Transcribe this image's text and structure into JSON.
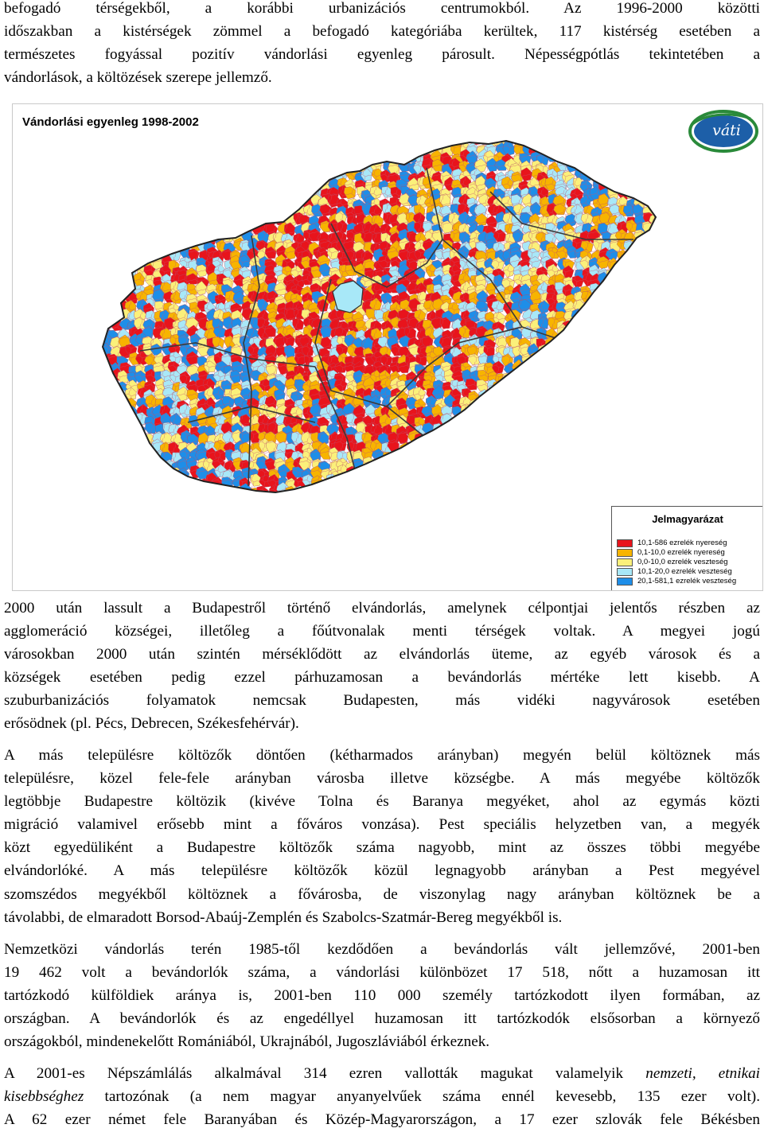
{
  "paragraph_top": {
    "lines": [
      "befogadó térségekből, a korábbi urbanizációs centrumokból. Az 1996-2000 közötti",
      "időszakban a kistérségek zömmel a befogadó kategóriába kerültek, 117 kistérség esetében a",
      "természetes fogyással pozitív vándorlási egyenleg párosult. Népességpótlás tekintetében a",
      "vándorlások, a költözések szerepe jellemző."
    ]
  },
  "figure": {
    "title": "Vándorlási egyenleg 1998-2002",
    "logo_text": "váti",
    "legend": {
      "title": "Jelmagyarázat",
      "items": [
        {
          "label": "10,1-586 ezrelék nyereség",
          "color": "#e8141c"
        },
        {
          "label": "0,1-10,0 ezrelék nyereség",
          "color": "#f7b400"
        },
        {
          "label": "0,0-10,0 ezrelék veszteség",
          "color": "#fbf07a"
        },
        {
          "label": "10,1-20,0 ezrelék veszteség",
          "color": "#a8e8f8"
        },
        {
          "label": "20,1-581,1 ezrelék veszteség",
          "color": "#1e8ee8"
        }
      ]
    }
  },
  "paragraph_2": {
    "lines": [
      "2000 után lassult a Budapestről történő elvándorlás, amelynek célpontjai jelentős részben az",
      "agglomeráció községei, illetőleg a főútvonalak menti térségek voltak. A megyei jogú",
      "városokban 2000 után szintén mérséklődött az elvándorlás üteme, az egyéb városok és a",
      "községek esetében pedig ezzel párhuzamosan a bevándorlás mértéke lett kisebb. A",
      "szuburbanizációs folyamatok nemcsak Budapesten, más vidéki nagyvárosok esetében",
      "erősödnek (pl. Pécs, Debrecen, Székesfehérvár)."
    ]
  },
  "paragraph_3": {
    "lines": [
      "A más településre költözők döntően (kétharmados arányban) megyén belül költöznek más",
      "településre, közel fele-fele arányban városba illetve községbe. A más megyébe költözők",
      "legtöbbje Budapestre költözik (kivéve Tolna és Baranya megyéket, ahol az egymás közti",
      "migráció valamivel erősebb mint a főváros vonzása). Pest speciális helyzetben van, a megyék",
      "közt egyedüliként a Budapestre költözők száma nagyobb, mint az összes többi megyébe",
      "elvándorlóké. A más településre költözők közül legnagyobb arányban a Pest megyével",
      "szomszédos megyékből költöznek a fővárosba, de viszonylag nagy arányban költöznek be a",
      "távolabbi, de elmaradott Borsod-Abaúj-Zemplén és Szabolcs-Szatmár-Bereg megyékből is."
    ]
  },
  "paragraph_4": {
    "lines": [
      "Nemzetközi vándorlás terén 1985-től kezdődően a bevándorlás vált jellemzővé, 2001-ben",
      "19 462 volt a bevándorlók száma, a vándorlási különbözet 17 518, nőtt a huzamosan itt",
      "tartózkodó külföldiek aránya is, 2001-ben 110 000 személy tartózkodott ilyen formában, az",
      "országban. A bevándorlók és az engedéllyel huzamosan itt tartózkodók elsősorban a környező",
      "országokból, mindenekelőtt Romániából, Ukrajnából, Jugoszláviából érkeznek."
    ]
  },
  "paragraph_5": {
    "line1": "A 2001-es Népszámlálás alkalmával 314 ezren vallották magukat valamelyik",
    "line1_italic": "nemzeti, etnikai",
    "line2_italic": "kisebbséghez",
    "line2": "tartozónak (a nem magyar anyanyelvűek száma ennél kevesebb, 135 ezer volt).",
    "line3": "A 62 ezer német fele Baranyában és Közép-Magyarországon, a 17 ezer szlovák fele Békésben"
  }
}
